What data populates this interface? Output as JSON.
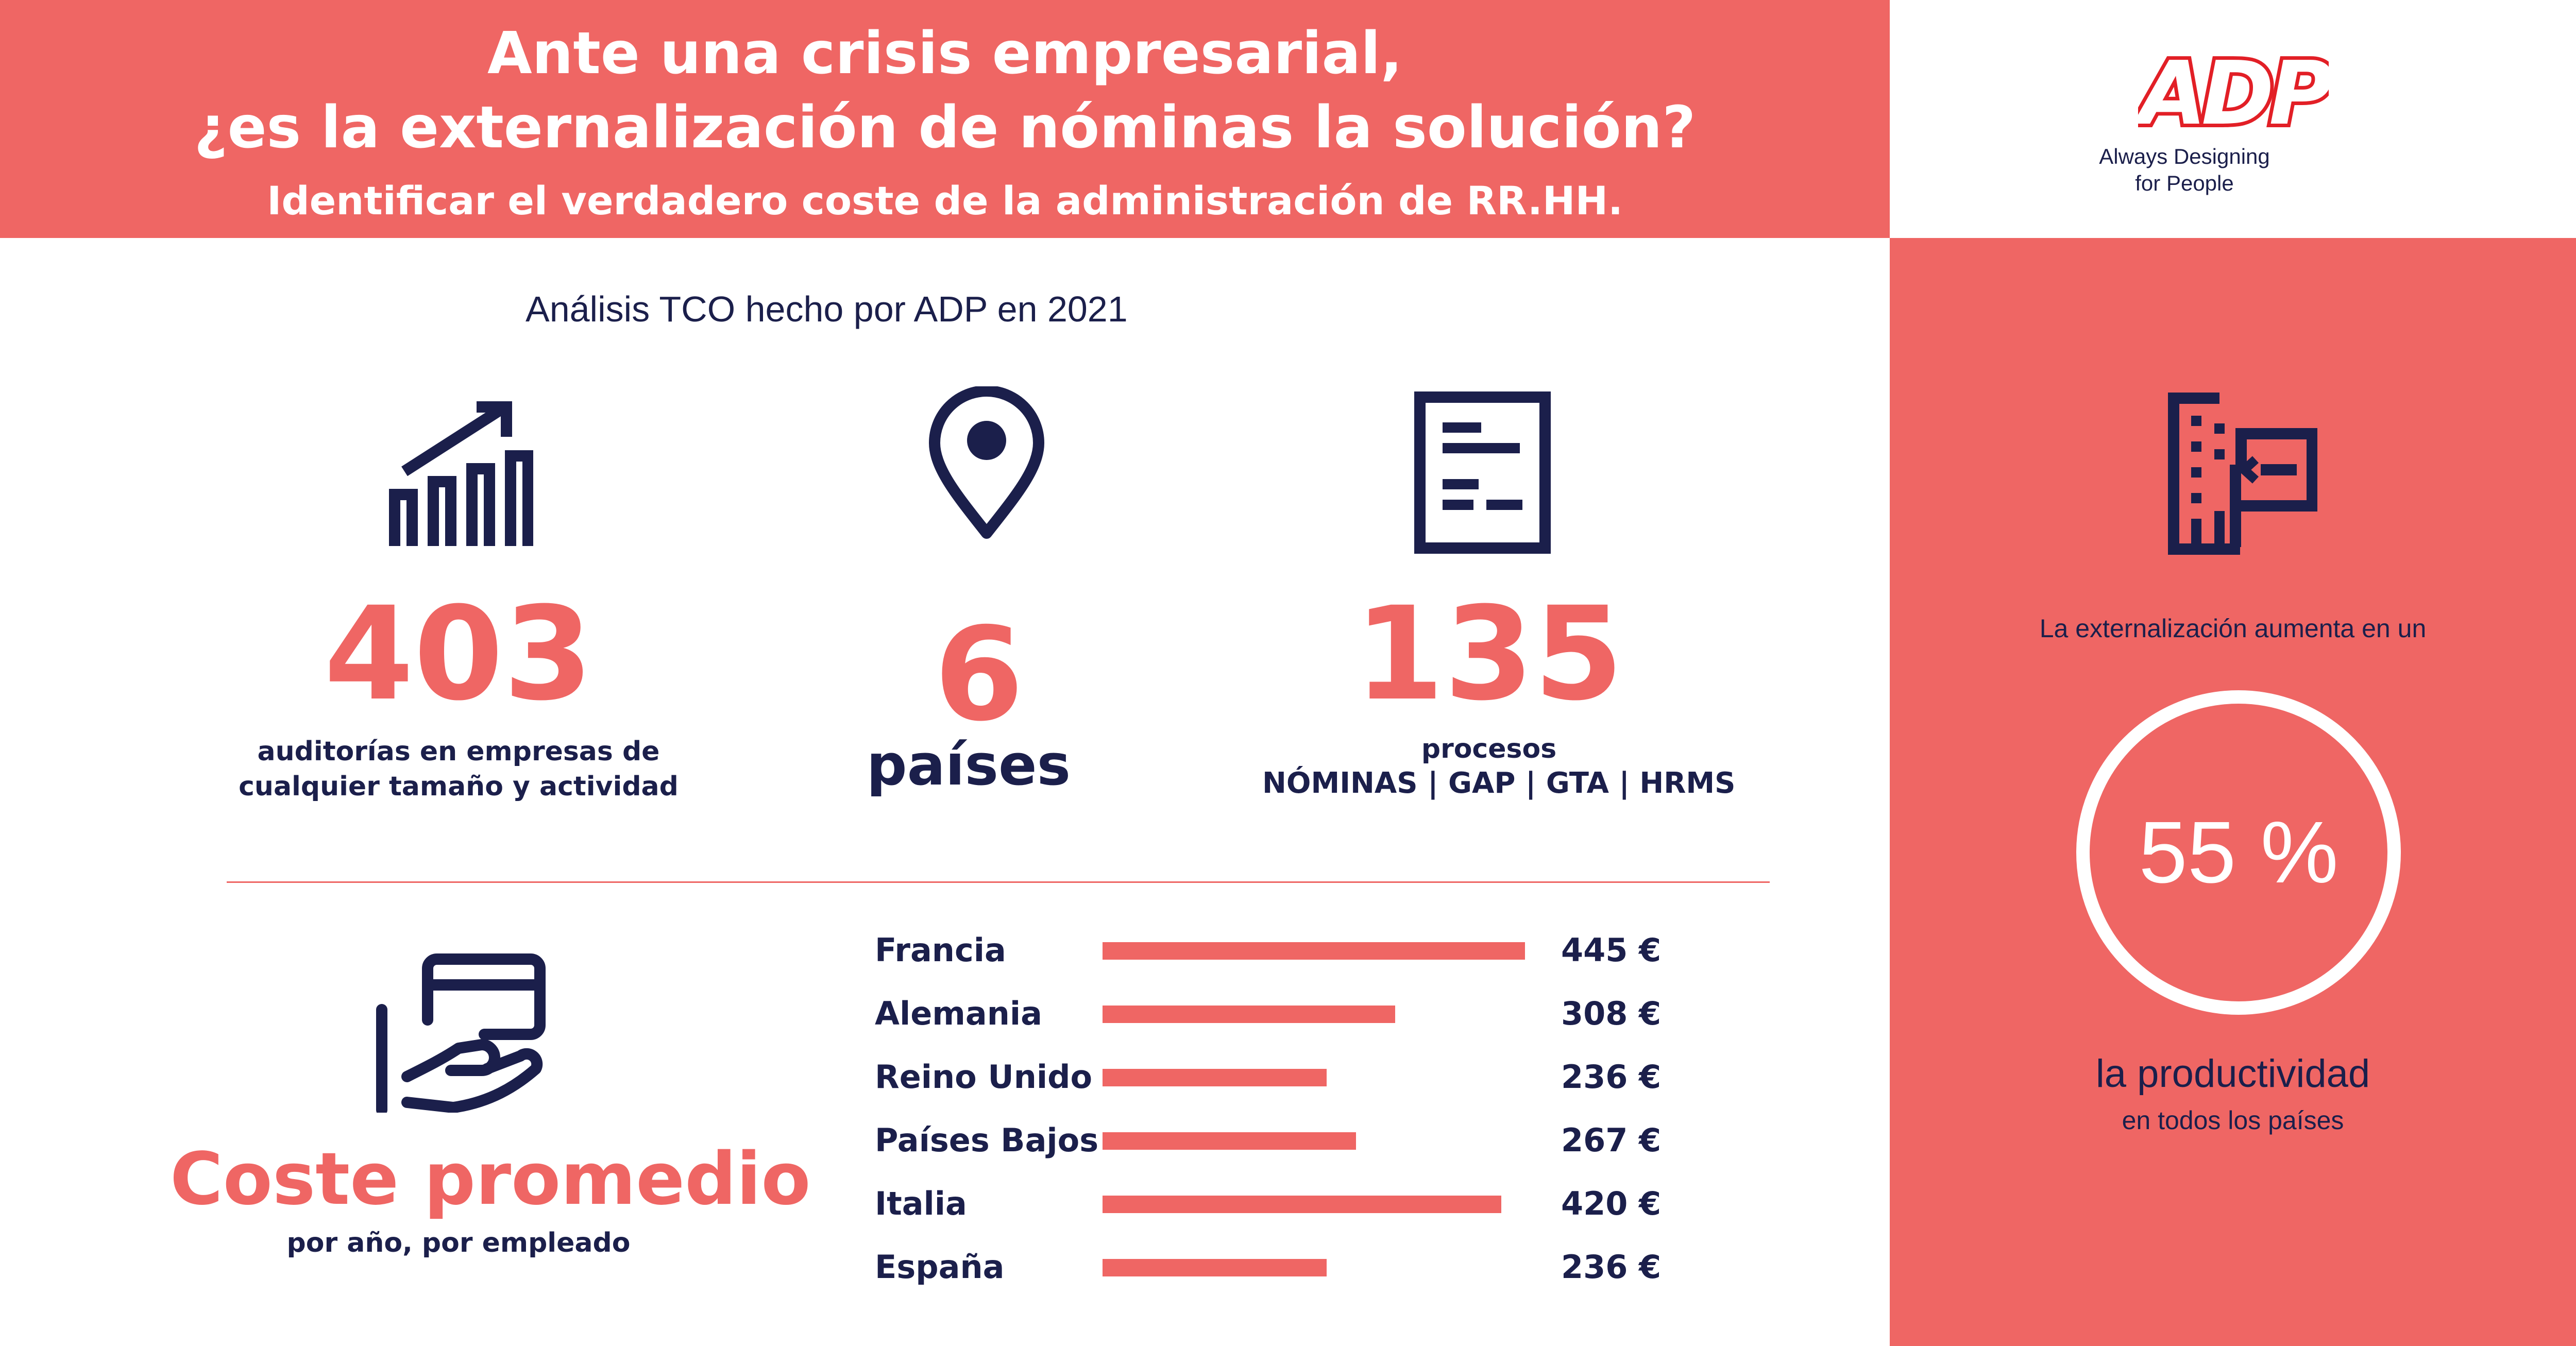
{
  "header": {
    "title_line1": "Ante una crisis empresarial,",
    "title_line2": "¿es la externalización de nóminas la solución?",
    "subtitle": "Identificar el verdadero coste de la administración de RR.HH."
  },
  "brand": {
    "logo_text": "ADP",
    "tagline_line1": "Always Designing",
    "tagline_line2": "for People",
    "accent_color": "#ef6664",
    "navy_color": "#1b1f4b"
  },
  "analysis_title": "Análisis TCO hecho por ADP en 2021",
  "stats": [
    {
      "icon": "growth-chart-icon",
      "value": "403",
      "label_line1": "auditorías en empresas de",
      "label_line2": "cualquier tamaño y actividad"
    },
    {
      "icon": "location-pin-icon",
      "value": "6",
      "label_line1": "países"
    },
    {
      "icon": "document-icon",
      "value": "135",
      "label_line1": "procesos",
      "label_line2": "NÓMINAS | GAP | GTA | HRMS"
    }
  ],
  "cost": {
    "icon": "card-in-hand-icon",
    "title": "Coste promedio",
    "subtitle": "por año, por empleado"
  },
  "chart_data": {
    "type": "bar",
    "orientation": "horizontal",
    "title": "Coste promedio",
    "subtitle": "por año, por empleado",
    "unit": "€",
    "categories": [
      "Francia",
      "Alemania",
      "Reino Unido",
      "Países Bajos",
      "Italia",
      "España"
    ],
    "values": [
      445,
      308,
      236,
      267,
      420,
      236
    ],
    "value_labels": [
      "445 €",
      "308 €",
      "236 €",
      "267 €",
      "420 €",
      "236 €"
    ],
    "xlim": [
      0,
      445
    ],
    "grid": false,
    "legend": "none"
  },
  "side": {
    "icon": "outsourcing-building-icon",
    "intro": "La externalización aumenta en un",
    "value": "55 %",
    "main": "la productividad",
    "small": "en todos los países"
  }
}
